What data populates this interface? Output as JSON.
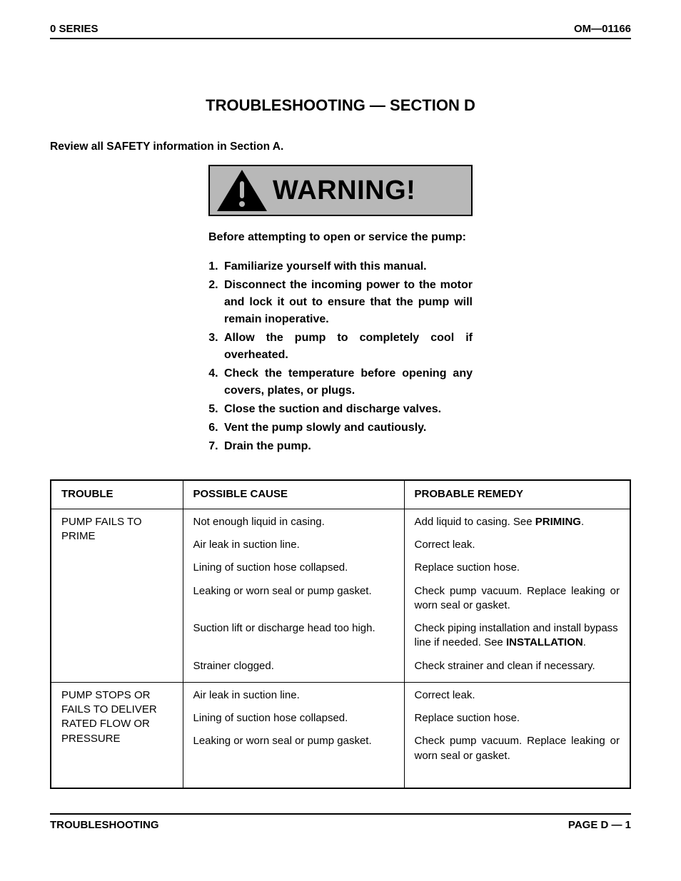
{
  "header": {
    "left": "0 SERIES",
    "right": "OM—01166"
  },
  "title": "TROUBLESHOOTING — SECTION D",
  "safety_line": "Review all SAFETY information in Section A.",
  "warning": {
    "label": "WARNING!",
    "intro": "Before attempting to open or service the pump:",
    "items": [
      "Familiarize yourself with this manual.",
      "Disconnect the incoming power to the motor and lock it out to ensure that the pump will remain inopera­tive.",
      "Allow the pump to completely cool if overheated.",
      "Check the temperature before open­ing any covers, plates, or plugs.",
      "Close the suction and discharge valves.",
      "Vent the pump slowly and cautiously.",
      "Drain the pump."
    ]
  },
  "table": {
    "headers": {
      "trouble": "TROUBLE",
      "cause": "POSSIBLE CAUSE",
      "remedy": "PROBABLE REMEDY"
    },
    "groups": [
      {
        "trouble": "PUMP FAILS TO PRIME",
        "rows": [
          {
            "cause": "Not enough liquid in casing.",
            "remedy_pre": "Add liquid to casing. See ",
            "remedy_bold": "PRIM­ING",
            "remedy_post": ".",
            "remedy_justify": true
          },
          {
            "cause": "Air leak in suction line.",
            "remedy_pre": "Correct leak.",
            "remedy_bold": "",
            "remedy_post": ""
          },
          {
            "cause": "Lining of suction hose collapsed.",
            "remedy_pre": "Replace suction hose.",
            "remedy_bold": "",
            "remedy_post": ""
          },
          {
            "cause": "Leaking or worn seal or pump gasket.",
            "remedy_pre": "Check pump vacuum. Replace leaking or worn seal or gasket.",
            "remedy_bold": "",
            "remedy_post": "",
            "remedy_justify": true
          },
          {
            "cause": "Suction lift or discharge head too high.",
            "remedy_pre": "Check piping installation and in­stall bypass line if needed. See ",
            "remedy_bold": "INSTALLATION",
            "remedy_post": "."
          },
          {
            "cause": "Strainer clogged.",
            "remedy_pre": "Check strainer and clean if neces­sary.",
            "remedy_bold": "",
            "remedy_post": ""
          }
        ]
      },
      {
        "trouble": "PUMP STOPS OR FAILS TO DELIVER RATED FLOW OR PRESSURE",
        "rows": [
          {
            "cause": "Air leak in suction line.",
            "remedy_pre": "Correct leak.",
            "remedy_bold": "",
            "remedy_post": ""
          },
          {
            "cause": "Lining of suction hose collapsed.",
            "remedy_pre": "Replace suction hose.",
            "remedy_bold": "",
            "remedy_post": ""
          },
          {
            "cause": "Leaking or worn seal or pump gasket.",
            "remedy_pre": "Check pump vacuum. Replace leaking or worn seal or gasket.",
            "remedy_bold": "",
            "remedy_post": "",
            "remedy_justify": true,
            "extra_bottom": true
          }
        ]
      }
    ]
  },
  "footer": {
    "left": "TROUBLESHOOTING",
    "right": "PAGE D — 1"
  },
  "colors": {
    "warning_bg": "#b8b8b8",
    "text": "#000000",
    "page_bg": "#ffffff"
  },
  "fontsizes": {
    "header": 15,
    "title": 22,
    "body": 15,
    "warning_label": 38,
    "warning_body": 16
  }
}
